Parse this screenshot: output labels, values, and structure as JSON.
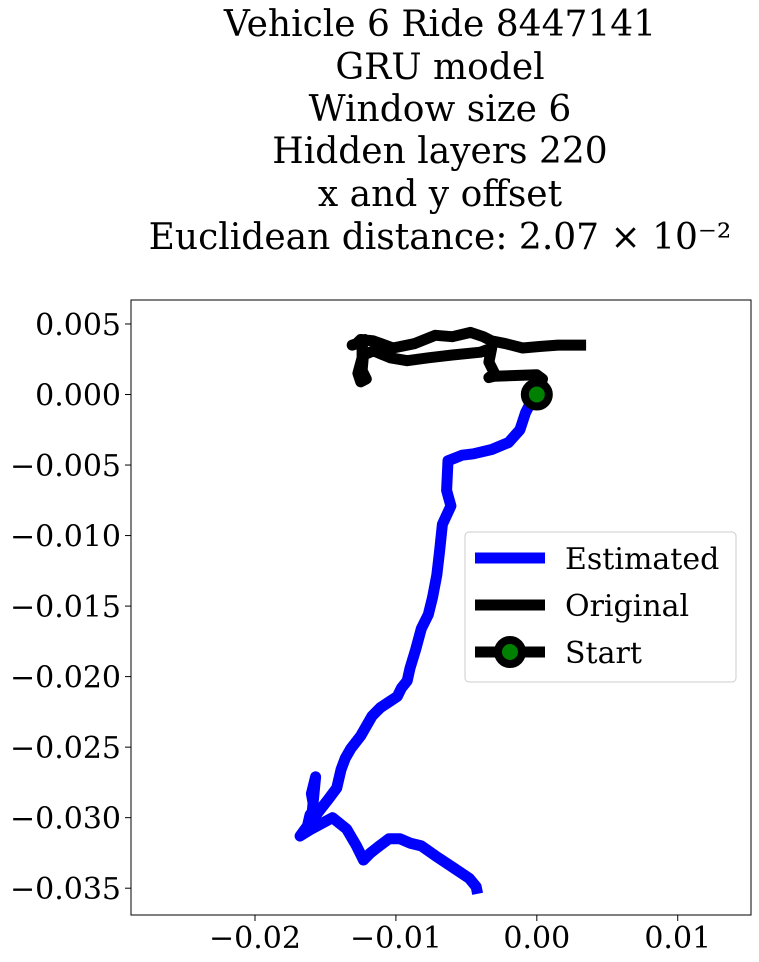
{
  "chart_data": {
    "type": "line",
    "title_lines": [
      "Vehicle 6 Ride 8447141",
      "GRU model",
      "Window size 6",
      "Hidden layers 220",
      "x and y offset",
      "Euclidean distance: 2.07 × 10⁻²"
    ],
    "xlabel": "",
    "ylabel": "",
    "xlim": [
      -0.0288,
      0.0152
    ],
    "ylim": [
      -0.0369,
      0.0067
    ],
    "xticks": [
      -0.02,
      -0.01,
      0.0,
      0.01
    ],
    "xtick_labels": [
      "−0.02",
      "−0.01",
      "0.00",
      "0.01"
    ],
    "yticks": [
      0.005,
      0.0,
      -0.005,
      -0.01,
      -0.015,
      -0.02,
      -0.025,
      -0.03,
      -0.035
    ],
    "ytick_labels": [
      "0.005",
      "0.000",
      "−0.005",
      "−0.010",
      "−0.015",
      "−0.020",
      "−0.025",
      "−0.030",
      "−0.035"
    ],
    "grid": false,
    "legend_position": "center-right",
    "series": [
      {
        "name": "Estimated",
        "color": "#0000ff",
        "x": [
          0.0,
          -0.0005,
          -0.0008,
          -0.0012,
          -0.002,
          -0.0032,
          -0.0045,
          -0.0053,
          -0.0058,
          -0.0063,
          -0.0064,
          -0.0061,
          -0.0067,
          -0.0069,
          -0.0071,
          -0.0074,
          -0.0077,
          -0.0082,
          -0.0086,
          -0.009,
          -0.0092,
          -0.0096,
          -0.0099,
          -0.0105,
          -0.0111,
          -0.0117,
          -0.0125,
          -0.0132,
          -0.0136,
          -0.0139,
          -0.0142,
          -0.0148,
          -0.0155,
          -0.0163,
          -0.0161,
          -0.0158,
          -0.016,
          -0.0157,
          -0.016,
          -0.0168,
          -0.016,
          -0.0145,
          -0.0135,
          -0.0128,
          -0.0123,
          -0.0118,
          -0.0113,
          -0.0105,
          -0.0097,
          -0.009,
          -0.0082,
          -0.0072,
          -0.006,
          -0.0048,
          -0.0043,
          -0.0042
        ],
        "y": [
          0.0,
          -0.0007,
          -0.0013,
          -0.0025,
          -0.0034,
          -0.0039,
          -0.0042,
          -0.0043,
          -0.0045,
          -0.0047,
          -0.0068,
          -0.0079,
          -0.0092,
          -0.0111,
          -0.0128,
          -0.0144,
          -0.0156,
          -0.0166,
          -0.0181,
          -0.0194,
          -0.0203,
          -0.0208,
          -0.0214,
          -0.0218,
          -0.0222,
          -0.0228,
          -0.0242,
          -0.0251,
          -0.0258,
          -0.0266,
          -0.0279,
          -0.0287,
          -0.0296,
          -0.0307,
          -0.0298,
          -0.0294,
          -0.0283,
          -0.0271,
          -0.0302,
          -0.0313,
          -0.0308,
          -0.03,
          -0.0308,
          -0.032,
          -0.033,
          -0.0325,
          -0.0321,
          -0.0315,
          -0.0315,
          -0.0318,
          -0.032,
          -0.0327,
          -0.0335,
          -0.0343,
          -0.0349,
          -0.0354
        ]
      },
      {
        "name": "Original",
        "color": "#000000",
        "x": [
          0.0,
          0.0004,
          0.0,
          -0.003,
          -0.0034,
          -0.003,
          -0.0034,
          -0.0032,
          -0.004,
          -0.006,
          -0.0077,
          -0.0092,
          -0.0104,
          -0.0116,
          -0.0123,
          -0.0124,
          -0.0121,
          -0.0125,
          -0.0127,
          -0.0124,
          -0.0124,
          -0.0122,
          -0.0125,
          -0.0131,
          -0.0128,
          -0.0125,
          -0.0116,
          -0.0102,
          -0.0087,
          -0.0072,
          -0.006,
          -0.0047,
          -0.0038,
          -0.0032,
          -0.0022,
          -0.001,
          0.0002,
          0.0015,
          0.0025,
          0.0035
        ],
        "y": [
          0.0,
          0.0011,
          0.0014,
          0.0013,
          0.0012,
          0.0015,
          0.0023,
          0.0033,
          0.003,
          0.0028,
          0.0026,
          0.0024,
          0.0026,
          0.0031,
          0.0028,
          0.0017,
          0.0011,
          0.0009,
          0.0015,
          0.0026,
          0.0034,
          0.0039,
          0.0037,
          0.0035,
          0.0036,
          0.0039,
          0.0038,
          0.0033,
          0.0036,
          0.0042,
          0.0041,
          0.0044,
          0.0041,
          0.0038,
          0.0036,
          0.0033,
          0.0034,
          0.0035,
          0.0035,
          0.0035
        ]
      }
    ],
    "start_point": {
      "name": "Start",
      "x": 0.0,
      "y": 0.0,
      "outer_color": "#000000",
      "inner_color": "#008000"
    }
  }
}
